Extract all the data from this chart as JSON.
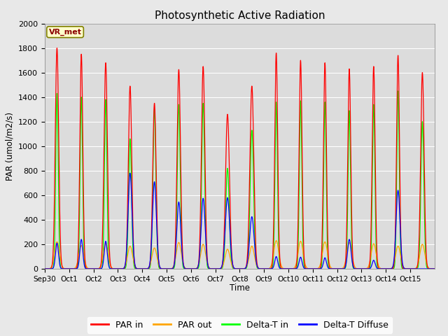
{
  "title": "Photosynthetic Active Radiation",
  "ylabel": "PAR (umol/m2/s)",
  "xlabel": "Time",
  "annotation_text": "VR_met",
  "ylim": [
    0,
    2000
  ],
  "fig_bg_color": "#e8e8e8",
  "plot_bg_color": "#dcdcdc",
  "legend_labels": [
    "PAR in",
    "PAR out",
    "Delta-T in",
    "Delta-T Diffuse"
  ],
  "legend_colors": [
    "red",
    "orange",
    "lime",
    "blue"
  ],
  "xtick_labels": [
    "Sep 30",
    "Oct 1",
    "Oct 2",
    "Oct 3",
    "Oct 4",
    "Oct 5",
    "Oct 6",
    "Oct 7",
    "Oct 8",
    "Oct 9",
    "Oct 10",
    "Oct 11",
    "Oct 12",
    "Oct 13",
    "Oct 14",
    "Oct 15"
  ],
  "days": 16,
  "par_in_peaks": [
    1800,
    1750,
    1680,
    1490,
    1350,
    1625,
    1650,
    1260,
    1490,
    1760,
    1700,
    1680,
    1630,
    1650,
    1740,
    1600
  ],
  "par_out_peaks": [
    220,
    190,
    210,
    185,
    170,
    215,
    200,
    160,
    185,
    230,
    225,
    220,
    215,
    205,
    185,
    200
  ],
  "delta_t_peaks": [
    1430,
    1400,
    1380,
    1060,
    1300,
    1340,
    1350,
    820,
    1130,
    1360,
    1370,
    1360,
    1290,
    1340,
    1450,
    1200
  ],
  "delta_diffuse_peaks": [
    210,
    240,
    225,
    780,
    710,
    545,
    575,
    580,
    425,
    100,
    95,
    90,
    240,
    70,
    640,
    0
  ],
  "par_in_widths": [
    0.07,
    0.06,
    0.07,
    0.07,
    0.07,
    0.07,
    0.07,
    0.08,
    0.08,
    0.06,
    0.06,
    0.06,
    0.06,
    0.06,
    0.06,
    0.07
  ],
  "delta_t_widths": [
    0.05,
    0.05,
    0.05,
    0.06,
    0.06,
    0.06,
    0.06,
    0.07,
    0.07,
    0.05,
    0.05,
    0.05,
    0.05,
    0.05,
    0.05,
    0.06
  ],
  "delta_diffuse_widths": [
    0.06,
    0.06,
    0.06,
    0.08,
    0.08,
    0.08,
    0.08,
    0.09,
    0.09,
    0.06,
    0.06,
    0.06,
    0.07,
    0.06,
    0.08,
    0.05
  ],
  "par_out_widths": [
    0.1,
    0.1,
    0.1,
    0.1,
    0.1,
    0.1,
    0.1,
    0.1,
    0.1,
    0.1,
    0.1,
    0.1,
    0.1,
    0.1,
    0.1,
    0.1
  ]
}
